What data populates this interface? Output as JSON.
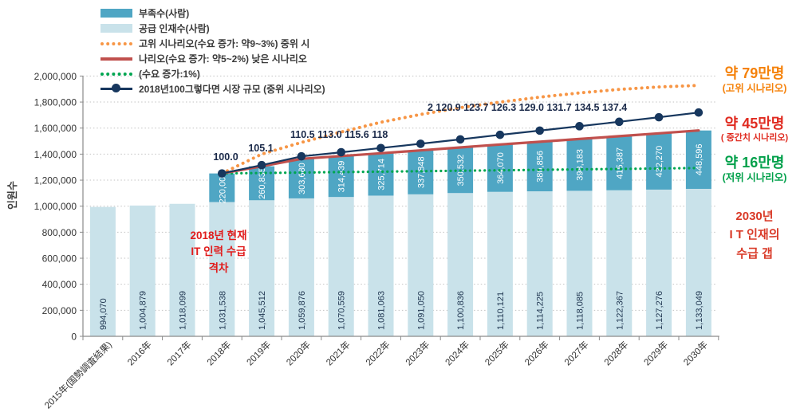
{
  "chart_data": {
    "type": "bar",
    "subtype": "stacked-bar-with-lines",
    "ylabel": "인원수",
    "ylim": [
      0,
      2000000
    ],
    "ytick_step": 200000,
    "y_ticks": [
      "0",
      "200,000",
      "400,000",
      "600,000",
      "800,000",
      "1,000,000",
      "1,200,000",
      "1,400,000",
      "1,600,000",
      "1,800,000",
      "2,000,000"
    ],
    "categories": [
      "2015年(国勢調査結果)",
      "2016年",
      "2017年",
      "2018年",
      "2019年",
      "2020年",
      "2021年",
      "2022年",
      "2023年",
      "2024年",
      "2025年",
      "2026年",
      "2027年",
      "2028年",
      "2029年",
      "2030年"
    ],
    "line_start_category": "2018年",
    "series": [
      {
        "name": "공급 인재수(사람)",
        "type": "bar",
        "color": "#c9e2ea",
        "values": [
          994070,
          1004879,
          1018099,
          1031538,
          1045512,
          1059876,
          1070559,
          1081063,
          1091050,
          1100836,
          1110121,
          1114225,
          1118085,
          1122367,
          1127276,
          1133049
        ]
      },
      {
        "name": "부족수(사람)",
        "type": "bar-stacked",
        "color": "#4fa6c4",
        "values": [
          null,
          null,
          null,
          220000,
          260835,
          303680,
          314439,
          325714,
          337848,
          350532,
          364070,
          380856,
          398183,
          415387,
          432270,
          448596
        ]
      },
      {
        "name": "고위 시나리오(수요 증가: 약9~3%)",
        "type": "dotted-line",
        "color": "#f79646",
        "values": [
          null,
          null,
          null,
          1251538,
          1400000,
          1490000,
          1570000,
          1645000,
          1705000,
          1757000,
          1800000,
          1838000,
          1870000,
          1897000,
          1916000,
          1928000
        ]
      },
      {
        "name": "중위 시나리오(수요 증가: 약5~2%)",
        "type": "solid-line",
        "color": "#c0504d",
        "note": "demand mid scenario = supply + shortage",
        "values": [
          null,
          null,
          null,
          1251538,
          1306347,
          1363556,
          1384998,
          1406777,
          1428898,
          1451368,
          1474191,
          1495081,
          1516268,
          1537754,
          1559546,
          1581645
        ]
      },
      {
        "name": "낮은 시나리오(수요 증가:1%)",
        "type": "dotted-line",
        "color": "#00a651",
        "values": [
          null,
          null,
          null,
          1251538,
          1255000,
          1258500,
          1262000,
          1265400,
          1268800,
          1272300,
          1275800,
          1279200,
          1282700,
          1286100,
          1289600,
          1293049
        ]
      },
      {
        "name": "2018년100그렇다면 시장 규모 (중위 시나리오)",
        "type": "line-marker",
        "color": "#17375e",
        "index_values": [
          null,
          null,
          null,
          100.0,
          105.1,
          110.5,
          113.0,
          115.6,
          118.2,
          120.9,
          123.7,
          126.3,
          129.0,
          131.7,
          134.5,
          137.4
        ],
        "index_base_value": 1251538
      }
    ],
    "index_label_rows": [
      "100.0",
      "105.1",
      "110.5 113.0 115.6 118",
      "2 120.9 123.7 126.3 129.0 131.7 134.5 137.4"
    ],
    "grid": "horizontal-dotted",
    "legend_position": "top-left"
  },
  "legend": {
    "items": [
      {
        "marker": "bar-shortage",
        "color": "#4fa6c4",
        "label": "부족수(사람)"
      },
      {
        "marker": "bar-supply",
        "color": "#c9e2ea",
        "label": "공급 인재수(사람)"
      },
      {
        "marker": "dot-orange",
        "color": "#f79646",
        "label": "고위 시나리오(수요 증가: 약9~3%) 중위 시"
      },
      {
        "marker": "solid-red",
        "color": "#c0504d",
        "label": "나리오(수요 증가: 약5~2%) 낮은 시나리오"
      },
      {
        "marker": "dot-green",
        "color": "#00a651",
        "label": "(수요 증가:1%)"
      },
      {
        "marker": "line-navy",
        "color": "#17375e",
        "label": "2018년100그렇다면 시장 규모 (중위 시나리오)"
      }
    ]
  },
  "annotations": {
    "gap_2018": {
      "lines": [
        "2018년 현재",
        "IT 인력 수급",
        "격차"
      ],
      "color": "#e11c1c"
    },
    "high": {
      "value": "약 79만명",
      "caption": "(고위 시나리오)",
      "color": "#f5820b"
    },
    "mid": {
      "value": "약 45만명",
      "caption": "( 중간치 시나리오)",
      "color": "#e02b20"
    },
    "low": {
      "value": "약 16만명",
      "caption": "(저위 시나리오)",
      "color": "#00a04a"
    },
    "gap_2030": {
      "lines": [
        "2030년",
        "I T 인재의",
        "수급 갭"
      ],
      "color": "#d93a28"
    }
  }
}
